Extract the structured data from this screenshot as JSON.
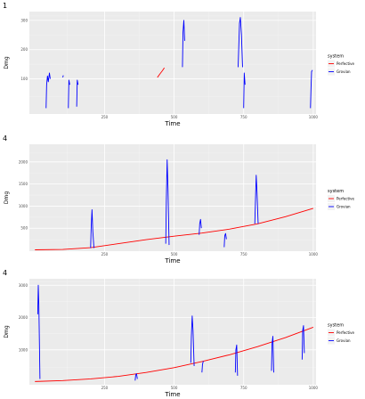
{
  "chart_data": [
    {
      "type": "line",
      "tag": "1",
      "xlabel": "Time",
      "ylabel": "Dmg",
      "xlim": [
        -20,
        1010
      ],
      "ylim": [
        -20,
        330
      ],
      "xticks": [
        250,
        500,
        750,
        1000
      ],
      "xtick_labels": [
        "250",
        "500",
        "750",
        "1000"
      ],
      "yticks": [
        100,
        200,
        300
      ],
      "ytick_labels": [
        "100",
        "200",
        "300"
      ],
      "legend_title": "system",
      "legend": [
        {
          "label": "Perfective",
          "color": "#ff0000"
        },
        {
          "label": "Grovian",
          "color": "#0000ff"
        }
      ],
      "series": [
        {
          "name": "Perfective",
          "color": "#ff0000",
          "segments": [
            [
              [
                440,
                105
              ],
              [
                450,
                118
              ],
              [
                458,
                128
              ],
              [
                465,
                138
              ]
            ]
          ]
        },
        {
          "name": "Grovian",
          "color": "#0000ff",
          "segments": [
            [
              [
                40,
                0
              ],
              [
                42,
                80
              ],
              [
                45,
                110
              ],
              [
                48,
                90
              ],
              [
                52,
                120
              ],
              [
                55,
                100
              ]
            ],
            [
              [
                100,
                105
              ],
              [
                102,
                112
              ]
            ],
            [
              [
                120,
                0
              ],
              [
                122,
                96
              ],
              [
                125,
                80
              ]
            ],
            [
              [
                150,
                5
              ],
              [
                152,
                96
              ],
              [
                155,
                80
              ]
            ],
            [
              [
                530,
                140
              ],
              [
                532,
                260
              ],
              [
                535,
                300
              ],
              [
                538,
                230
              ]
            ],
            [
              [
                730,
                140
              ],
              [
                735,
                290
              ],
              [
                738,
                310
              ],
              [
                742,
                250
              ],
              [
                746,
                140
              ]
            ],
            [
              [
                750,
                0
              ],
              [
                752,
                120
              ],
              [
                755,
                80
              ]
            ],
            [
              [
                990,
                0
              ],
              [
                992,
                70
              ],
              [
                994,
                125
              ],
              [
                997,
                130
              ]
            ]
          ]
        }
      ]
    },
    {
      "type": "line",
      "tag": "4",
      "xlabel": "Time",
      "ylabel": "Dmg",
      "xlim": [
        -20,
        1010
      ],
      "ylim": [
        -20,
        2400
      ],
      "xticks": [
        250,
        500,
        750,
        1000
      ],
      "xtick_labels": [
        "250",
        "500",
        "750",
        "1000"
      ],
      "yticks": [
        500,
        1000,
        1500,
        2000
      ],
      "ytick_labels": [
        "500",
        "1000",
        "1500",
        "2000"
      ],
      "legend_title": "system",
      "legend": [
        {
          "label": "Perfective",
          "color": "#ff0000"
        },
        {
          "label": "Grovian",
          "color": "#0000ff"
        }
      ],
      "series": [
        {
          "name": "Perfective",
          "color": "#ff0000",
          "segments": [
            [
              [
                0,
                10
              ],
              [
                100,
                20
              ],
              [
                200,
                60
              ],
              [
                300,
                150
              ],
              [
                400,
                240
              ],
              [
                500,
                320
              ],
              [
                600,
                390
              ],
              [
                700,
                480
              ],
              [
                800,
                600
              ],
              [
                900,
                760
              ],
              [
                1000,
                950
              ]
            ]
          ]
        },
        {
          "name": "Grovian",
          "color": "#0000ff",
          "segments": [
            [
              [
                200,
                50
              ],
              [
                202,
                500
              ],
              [
                205,
                920
              ],
              [
                208,
                420
              ],
              [
                212,
                50
              ]
            ],
            [
              [
                470,
                150
              ],
              [
                472,
                1100
              ],
              [
                475,
                2050
              ],
              [
                478,
                1400
              ],
              [
                482,
                120
              ]
            ],
            [
              [
                590,
                350
              ],
              [
                592,
                600
              ],
              [
                595,
                700
              ],
              [
                598,
                500
              ]
            ],
            [
              [
                680,
                70
              ],
              [
                682,
                330
              ],
              [
                685,
                380
              ],
              [
                688,
                250
              ]
            ],
            [
              [
                790,
                600
              ],
              [
                792,
                1050
              ],
              [
                795,
                1700
              ],
              [
                798,
                1300
              ],
              [
                802,
                600
              ]
            ]
          ]
        }
      ]
    },
    {
      "type": "line",
      "tag": "4",
      "xlabel": "Time",
      "ylabel": "Dmg",
      "xlim": [
        -20,
        1010
      ],
      "ylim": [
        -80,
        3200
      ],
      "xticks": [
        250,
        500,
        750,
        1000
      ],
      "xtick_labels": [
        "250",
        "500",
        "750",
        "1000"
      ],
      "yticks": [
        1000,
        2000,
        3000
      ],
      "ytick_labels": [
        "1000",
        "2000",
        "3000"
      ],
      "legend_title": "system",
      "legend": [
        {
          "label": "Perfective",
          "color": "#ff0000"
        },
        {
          "label": "Grovian",
          "color": "#0000ff"
        }
      ],
      "series": [
        {
          "name": "Perfective",
          "color": "#ff0000",
          "segments": [
            [
              [
                0,
                20
              ],
              [
                100,
                50
              ],
              [
                200,
                100
              ],
              [
                300,
                180
              ],
              [
                400,
                300
              ],
              [
                500,
                450
              ],
              [
                600,
                640
              ],
              [
                700,
                850
              ],
              [
                800,
                1100
              ],
              [
                900,
                1380
              ],
              [
                1000,
                1700
              ]
            ]
          ]
        },
        {
          "name": "Grovian",
          "color": "#0000ff",
          "segments": [
            [
              [
                10,
                2100
              ],
              [
                12,
                3000
              ],
              [
                14,
                2400
              ],
              [
                18,
                100
              ]
            ],
            [
              [
                360,
                50
              ],
              [
                362,
                220
              ],
              [
                365,
                260
              ],
              [
                368,
                100
              ]
            ],
            [
              [
                560,
                600
              ],
              [
                562,
                1400
              ],
              [
                565,
                2050
              ],
              [
                568,
                1600
              ],
              [
                572,
                500
              ]
            ],
            [
              [
                600,
                300
              ],
              [
                602,
                550
              ],
              [
                605,
                650
              ]
            ],
            [
              [
                720,
                300
              ],
              [
                722,
                1000
              ],
              [
                725,
                1150
              ],
              [
                728,
                200
              ]
            ],
            [
              [
                850,
                350
              ],
              [
                852,
                1200
              ],
              [
                855,
                1420
              ],
              [
                858,
                300
              ]
            ],
            [
              [
                960,
                700
              ],
              [
                962,
                1600
              ],
              [
                965,
                1750
              ],
              [
                968,
                900
              ]
            ]
          ]
        }
      ]
    }
  ]
}
